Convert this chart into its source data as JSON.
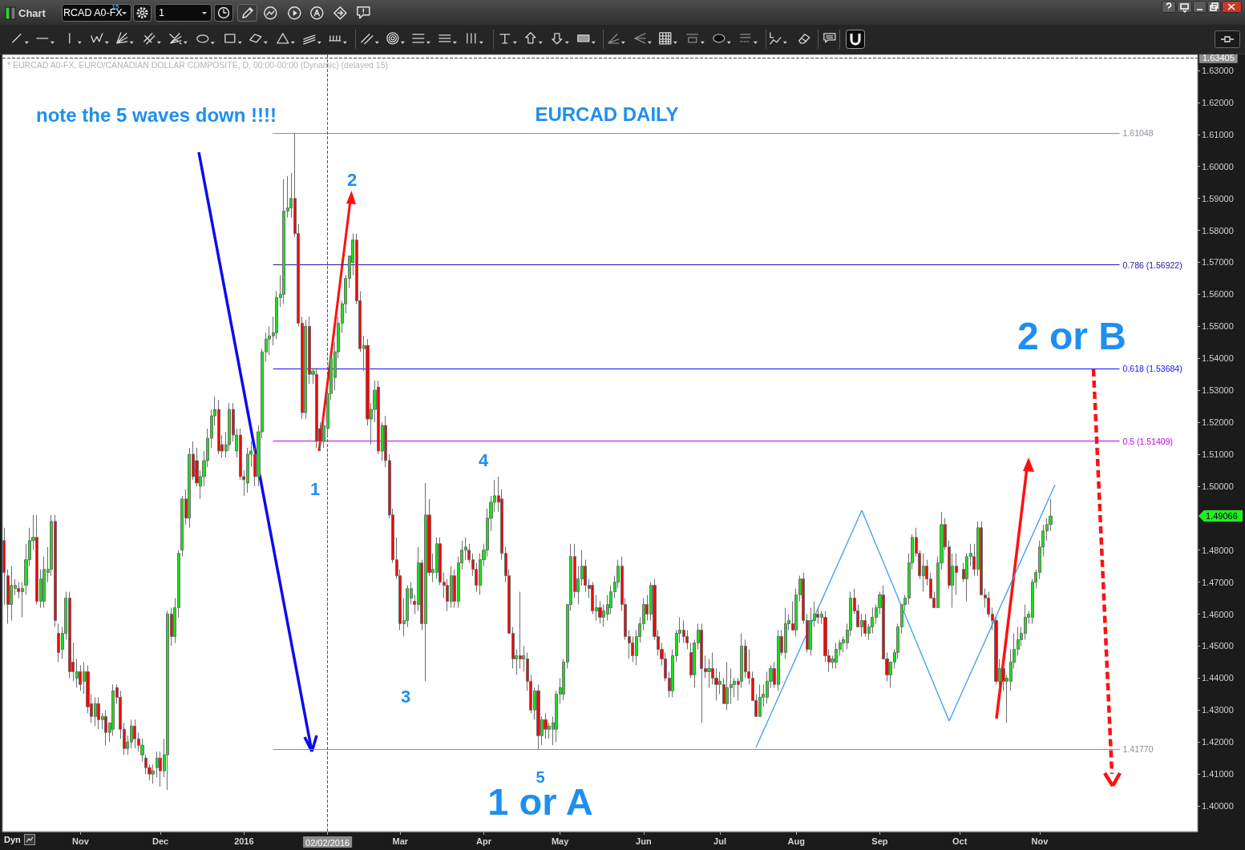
{
  "chart_data": {
    "type": "candlestick",
    "title": "EURCAD DAILY",
    "subtitle": "* EURCAD A0-FX, EURO/CANADIAN DOLLAR COMPOSITE, D, 00:00-00:00 (Dynamic) (delayed 15)",
    "categories": [
      null,
      null,
      null,
      null,
      null,
      null,
      null,
      null,
      null,
      null,
      null,
      null,
      null,
      null,
      null,
      null,
      null,
      null,
      null,
      null,
      null,
      "Nov",
      null,
      null,
      null,
      null,
      null,
      null,
      null,
      null,
      null,
      null,
      null,
      null,
      null,
      null,
      null,
      null,
      null,
      null,
      null,
      null,
      null,
      "Dec",
      null,
      null,
      null,
      null,
      null,
      null,
      null,
      null,
      null,
      null,
      null,
      null,
      null,
      null,
      null,
      null,
      null,
      null,
      null,
      null,
      null,
      null,
      "2016",
      null,
      null,
      null,
      null,
      null,
      null,
      null,
      null,
      null,
      null,
      null,
      null,
      null,
      null,
      null,
      null,
      null,
      null,
      null,
      null,
      null,
      null,
      "02/02/2016",
      null,
      null,
      null,
      null,
      null,
      null,
      null,
      null,
      null,
      null,
      null,
      null,
      null,
      null,
      null,
      null,
      null,
      null,
      null,
      "Mar",
      null,
      null,
      null,
      null,
      null,
      null,
      null,
      null,
      null,
      null,
      null,
      null,
      null,
      null,
      null,
      null,
      null,
      null,
      null,
      null,
      null,
      null,
      "Apr",
      null,
      null,
      null,
      null,
      null,
      null,
      null,
      null,
      null,
      null,
      null,
      null,
      null,
      null,
      null,
      null,
      null,
      null,
      null,
      null,
      "May",
      null,
      null,
      null,
      null,
      null,
      null,
      null,
      null,
      null,
      null,
      null,
      null,
      null,
      null,
      null,
      null,
      null,
      null,
      null,
      null,
      null,
      null,
      "Jun",
      null,
      null,
      null,
      null,
      null,
      null,
      null,
      null,
      null,
      null,
      null,
      null,
      null,
      null,
      null,
      null,
      null,
      null,
      null,
      null,
      "Jul",
      null,
      null,
      null,
      null,
      null,
      null,
      null,
      null,
      null,
      null,
      null,
      null,
      null,
      null,
      null,
      null,
      null,
      null,
      null,
      null,
      "Aug",
      null,
      null,
      null,
      null,
      null,
      null,
      null,
      null,
      null,
      null,
      null,
      null,
      null,
      null,
      null,
      null,
      null,
      null,
      null,
      null,
      null,
      null,
      "Sep",
      null,
      null,
      null,
      null,
      null,
      null,
      null,
      null,
      null,
      null,
      null,
      null,
      null,
      null,
      null,
      null,
      null,
      null,
      null,
      null,
      null,
      "Oct",
      null,
      null,
      null,
      null,
      null,
      null,
      null,
      null,
      null,
      null,
      null,
      null,
      null,
      null,
      null,
      null,
      null,
      null,
      null,
      null,
      null,
      "Nov",
      null,
      null,
      null,
      null,
      null,
      null,
      null,
      null,
      null,
      null,
      null,
      null,
      null,
      null,
      null,
      null,
      null,
      null,
      null,
      null,
      null,
      null,
      null,
      null,
      null,
      null,
      null,
      null,
      null,
      null,
      null,
      null,
      null,
      null,
      null,
      null,
      null,
      null,
      null,
      null,
      null,
      null,
      null
    ],
    "ohlc": [
      [
        1.483,
        1.487,
        1.463,
        1.473
      ],
      [
        1.472,
        1.474,
        1.457,
        1.463
      ],
      [
        1.463,
        1.475,
        1.458,
        1.469
      ],
      [
        1.468,
        1.471,
        1.466,
        1.469
      ],
      [
        1.468,
        1.47,
        1.465,
        1.467
      ],
      [
        1.467,
        1.47,
        1.459,
        1.468
      ],
      [
        1.469,
        1.482,
        1.466,
        1.477
      ],
      [
        1.477,
        1.487,
        1.475,
        1.483
      ],
      [
        1.483,
        1.491,
        1.48,
        1.484
      ],
      [
        1.484,
        1.491,
        1.463,
        1.464
      ],
      [
        1.464,
        1.474,
        1.462,
        1.471
      ],
      [
        1.464,
        1.478,
        1.462,
        1.474
      ],
      [
        1.473,
        1.481,
        1.47,
        1.474
      ],
      [
        1.474,
        1.491,
        1.472,
        1.489
      ],
      [
        1.489,
        1.491,
        1.456,
        1.458
      ],
      [
        1.454,
        1.457,
        1.445,
        1.448
      ],
      [
        1.449,
        1.456,
        1.446,
        1.454
      ],
      [
        1.454,
        1.467,
        1.452,
        1.465
      ],
      [
        1.465,
        1.467,
        1.44,
        1.442
      ],
      [
        1.445,
        1.451,
        1.439,
        1.442
      ],
      [
        1.44,
        1.446,
        1.437,
        1.442
      ],
      [
        1.442,
        1.444,
        1.436,
        1.438
      ],
      [
        1.439,
        1.445,
        1.435,
        1.442
      ],
      [
        1.442,
        1.444,
        1.429,
        1.431
      ],
      [
        1.432,
        1.435,
        1.426,
        1.428
      ],
      [
        1.428,
        1.434,
        1.425,
        1.432
      ],
      [
        1.432,
        1.434,
        1.424,
        1.427
      ],
      [
        1.427,
        1.429,
        1.424,
        1.428
      ],
      [
        1.428,
        1.43,
        1.419,
        1.423
      ],
      [
        1.423,
        1.426,
        1.42,
        1.426
      ],
      [
        1.424,
        1.438,
        1.422,
        1.436
      ],
      [
        1.437,
        1.438,
        1.432,
        1.434
      ],
      [
        1.434,
        1.436,
        1.421,
        1.424
      ],
      [
        1.424,
        1.426,
        1.416,
        1.418
      ],
      [
        1.418,
        1.422,
        1.416,
        1.42
      ],
      [
        1.42,
        1.427,
        1.418,
        1.425
      ],
      [
        1.425,
        1.427,
        1.418,
        1.421
      ],
      [
        1.421,
        1.423,
        1.417,
        1.419
      ],
      [
        1.416,
        1.421,
        1.414,
        1.419
      ],
      [
        1.415,
        1.416,
        1.41,
        1.412
      ],
      [
        1.412,
        1.413,
        1.408,
        1.41
      ],
      [
        1.41,
        1.413,
        1.407,
        1.411
      ],
      [
        1.412,
        1.417,
        1.409,
        1.415
      ],
      [
        1.415,
        1.417,
        1.406,
        1.411
      ],
      [
        1.411,
        1.421,
        1.409,
        1.416
      ],
      [
        1.416,
        1.461,
        1.405,
        1.46
      ],
      [
        1.46,
        1.462,
        1.45,
        1.453
      ],
      [
        1.453,
        1.465,
        1.451,
        1.462
      ],
      [
        1.462,
        1.48,
        1.459,
        1.479
      ],
      [
        1.48,
        1.497,
        1.478,
        1.496
      ],
      [
        1.496,
        1.499,
        1.488,
        1.49
      ],
      [
        1.49,
        1.512,
        1.487,
        1.51
      ],
      [
        1.51,
        1.514,
        1.502,
        1.503
      ],
      [
        1.508,
        1.512,
        1.5,
        1.501
      ],
      [
        1.5,
        1.505,
        1.496,
        1.503
      ],
      [
        1.503,
        1.511,
        1.5,
        1.508
      ],
      [
        1.508,
        1.518,
        1.506,
        1.515
      ],
      [
        1.515,
        1.524,
        1.512,
        1.522
      ],
      [
        1.522,
        1.528,
        1.519,
        1.524
      ],
      [
        1.524,
        1.527,
        1.51,
        1.511
      ],
      [
        1.513,
        1.516,
        1.509,
        1.511
      ],
      [
        1.511,
        1.517,
        1.509,
        1.513
      ],
      [
        1.513,
        1.526,
        1.511,
        1.524
      ],
      [
        1.524,
        1.526,
        1.514,
        1.516
      ],
      [
        1.511,
        1.518,
        1.509,
        1.516
      ],
      [
        1.516,
        1.518,
        1.502,
        1.503
      ],
      [
        1.503,
        1.505,
        1.497,
        1.502
      ],
      [
        1.501,
        1.512,
        1.498,
        1.51
      ],
      [
        1.51,
        1.514,
        1.506,
        1.511
      ],
      [
        1.51,
        1.512,
        1.5,
        1.503
      ],
      [
        1.503,
        1.519,
        1.5,
        1.517
      ],
      [
        1.517,
        1.543,
        1.515,
        1.542
      ],
      [
        1.542,
        1.548,
        1.539,
        1.546
      ],
      [
        1.546,
        1.55,
        1.541,
        1.547
      ],
      [
        1.547,
        1.553,
        1.544,
        1.548
      ],
      [
        1.548,
        1.561,
        1.546,
        1.559
      ],
      [
        1.559,
        1.566,
        1.556,
        1.56
      ],
      [
        1.56,
        1.596,
        1.557,
        1.586
      ],
      [
        1.586,
        1.597,
        1.584,
        1.587
      ],
      [
        1.587,
        1.598,
        1.584,
        1.59
      ],
      [
        1.59,
        1.6105,
        1.578,
        1.579
      ],
      [
        1.579,
        1.582,
        1.55,
        1.551
      ],
      [
        1.551,
        1.553,
        1.521,
        1.523
      ],
      [
        1.523,
        1.552,
        1.521,
        1.55
      ],
      [
        1.55,
        1.553,
        1.532,
        1.535
      ],
      [
        1.535,
        1.537,
        1.532,
        1.536
      ],
      [
        1.535,
        1.537,
        1.512,
        1.514
      ],
      [
        1.518,
        1.52,
        1.511,
        1.514
      ],
      [
        1.514,
        1.522,
        1.512,
        1.519
      ],
      [
        1.518,
        1.531,
        1.516,
        1.529
      ],
      [
        1.529,
        1.541,
        1.527,
        1.54
      ],
      [
        1.534,
        1.545,
        1.53,
        1.542
      ],
      [
        1.542,
        1.553,
        1.54,
        1.551
      ],
      [
        1.551,
        1.558,
        1.548,
        1.557
      ],
      [
        1.557,
        1.566,
        1.554,
        1.565
      ],
      [
        1.565,
        1.572,
        1.562,
        1.572
      ],
      [
        1.57,
        1.579,
        1.566,
        1.577
      ],
      [
        1.577,
        1.579,
        1.557,
        1.558
      ],
      [
        1.558,
        1.561,
        1.542,
        1.543
      ],
      [
        1.543,
        1.547,
        1.536,
        1.544
      ],
      [
        1.544,
        1.546,
        1.519,
        1.521
      ],
      [
        1.521,
        1.526,
        1.513,
        1.524
      ],
      [
        1.524,
        1.533,
        1.52,
        1.53
      ],
      [
        1.531,
        1.533,
        1.51,
        1.511
      ],
      [
        1.511,
        1.52,
        1.508,
        1.519
      ],
      [
        1.519,
        1.522,
        1.506,
        1.508
      ],
      [
        1.508,
        1.51,
        1.49,
        1.491
      ],
      [
        1.491,
        1.493,
        1.476,
        1.477
      ],
      [
        1.477,
        1.484,
        1.471,
        1.472
      ],
      [
        1.472,
        1.474,
        1.455,
        1.457
      ],
      [
        1.457,
        1.465,
        1.453,
        1.458
      ],
      [
        1.458,
        1.469,
        1.456,
        1.468
      ],
      [
        1.465,
        1.47,
        1.463,
        1.468
      ],
      [
        1.464,
        1.466,
        1.46,
        1.463
      ],
      [
        1.463,
        1.481,
        1.461,
        1.476
      ],
      [
        1.476,
        1.477,
        1.455,
        1.457
      ],
      [
        1.457,
        1.501,
        1.439,
        1.491
      ],
      [
        1.491,
        1.496,
        1.472,
        1.473
      ],
      [
        1.473,
        1.479,
        1.47,
        1.474
      ],
      [
        1.473,
        1.484,
        1.471,
        1.482
      ],
      [
        1.482,
        1.484,
        1.469,
        1.47
      ],
      [
        1.47,
        1.473,
        1.465,
        1.469
      ],
      [
        1.469,
        1.471,
        1.461,
        1.464
      ],
      [
        1.464,
        1.475,
        1.462,
        1.472
      ],
      [
        1.472,
        1.474,
        1.462,
        1.464
      ],
      [
        1.464,
        1.478,
        1.462,
        1.476
      ],
      [
        1.476,
        1.483,
        1.474,
        1.48
      ],
      [
        1.48,
        1.484,
        1.477,
        1.481
      ],
      [
        1.48,
        1.482,
        1.476,
        1.477
      ],
      [
        1.477,
        1.479,
        1.472,
        1.474
      ],
      [
        1.474,
        1.476,
        1.467,
        1.469
      ],
      [
        1.469,
        1.479,
        1.466,
        1.477
      ],
      [
        1.477,
        1.482,
        1.475,
        1.48
      ],
      [
        1.48,
        1.493,
        1.478,
        1.49
      ],
      [
        1.49,
        1.497,
        1.486,
        1.495
      ],
      [
        1.495,
        1.502,
        1.492,
        1.497
      ],
      [
        1.497,
        1.503,
        1.492,
        1.495
      ],
      [
        1.496,
        1.499,
        1.477,
        1.479
      ],
      [
        1.479,
        1.481,
        1.47,
        1.472
      ],
      [
        1.472,
        1.474,
        1.454,
        1.454
      ],
      [
        1.454,
        1.456,
        1.443,
        1.446
      ],
      [
        1.446,
        1.449,
        1.441,
        1.447
      ],
      [
        1.447,
        1.467,
        1.443,
        1.446
      ],
      [
        1.446,
        1.45,
        1.442,
        1.447
      ],
      [
        1.446,
        1.448,
        1.436,
        1.439
      ],
      [
        1.439,
        1.441,
        1.429,
        1.43
      ],
      [
        1.43,
        1.437,
        1.427,
        1.436
      ],
      [
        1.436,
        1.438,
        1.4177,
        1.422
      ],
      [
        1.422,
        1.428,
        1.419,
        1.427
      ],
      [
        1.427,
        1.429,
        1.421,
        1.424
      ],
      [
        1.424,
        1.426,
        1.421,
        1.425
      ],
      [
        1.424,
        1.428,
        1.419,
        1.426
      ],
      [
        1.424,
        1.436,
        1.42,
        1.435
      ],
      [
        1.435,
        1.44,
        1.432,
        1.437
      ],
      [
        1.435,
        1.446,
        1.433,
        1.445
      ],
      [
        1.445,
        1.463,
        1.443,
        1.463
      ],
      [
        1.463,
        1.482,
        1.461,
        1.478
      ],
      [
        1.478,
        1.482,
        1.465,
        1.467
      ],
      [
        1.467,
        1.475,
        1.463,
        1.471
      ],
      [
        1.471,
        1.48,
        1.469,
        1.475
      ],
      [
        1.475,
        1.477,
        1.467,
        1.469
      ],
      [
        1.469,
        1.471,
        1.465,
        1.468
      ],
      [
        1.469,
        1.47,
        1.46,
        1.461
      ],
      [
        1.461,
        1.466,
        1.458,
        1.462
      ],
      [
        1.462,
        1.464,
        1.457,
        1.459
      ],
      [
        1.459,
        1.463,
        1.456,
        1.461
      ],
      [
        1.46,
        1.466,
        1.458,
        1.463
      ],
      [
        1.462,
        1.469,
        1.46,
        1.467
      ],
      [
        1.467,
        1.472,
        1.465,
        1.47
      ],
      [
        1.47,
        1.477,
        1.468,
        1.475
      ],
      [
        1.475,
        1.478,
        1.461,
        1.463
      ],
      [
        1.463,
        1.465,
        1.452,
        1.453
      ],
      [
        1.453,
        1.455,
        1.446,
        1.451
      ],
      [
        1.451,
        1.453,
        1.445,
        1.447
      ],
      [
        1.447,
        1.455,
        1.444,
        1.453
      ],
      [
        1.453,
        1.459,
        1.451,
        1.457
      ],
      [
        1.457,
        1.465,
        1.455,
        1.463
      ],
      [
        1.463,
        1.466,
        1.458,
        1.46
      ],
      [
        1.46,
        1.47,
        1.458,
        1.469
      ],
      [
        1.469,
        1.471,
        1.452,
        1.453
      ],
      [
        1.453,
        1.455,
        1.447,
        1.449
      ],
      [
        1.449,
        1.451,
        1.444,
        1.446
      ],
      [
        1.446,
        1.448,
        1.439,
        1.44
      ],
      [
        1.44,
        1.442,
        1.434,
        1.436
      ],
      [
        1.436,
        1.449,
        1.434,
        1.447
      ],
      [
        1.447,
        1.455,
        1.445,
        1.454
      ],
      [
        1.454,
        1.459,
        1.451,
        1.455
      ],
      [
        1.455,
        1.458,
        1.451,
        1.453
      ],
      [
        1.453,
        1.455,
        1.449,
        1.451
      ],
      [
        1.448,
        1.451,
        1.44,
        1.441
      ],
      [
        1.441,
        1.452,
        1.437,
        1.451
      ],
      [
        1.451,
        1.457,
        1.449,
        1.455
      ],
      [
        1.455,
        1.457,
        1.426,
        1.443
      ],
      [
        1.443,
        1.447,
        1.44,
        1.442
      ],
      [
        1.442,
        1.446,
        1.437,
        1.443
      ],
      [
        1.443,
        1.448,
        1.438,
        1.44
      ],
      [
        1.44,
        1.443,
        1.433,
        1.438
      ],
      [
        1.438,
        1.442,
        1.435,
        1.439
      ],
      [
        1.438,
        1.44,
        1.432,
        1.432
      ],
      [
        1.432,
        1.445,
        1.43,
        1.437
      ],
      [
        1.437,
        1.443,
        1.432,
        1.438
      ],
      [
        1.438,
        1.44,
        1.434,
        1.439
      ],
      [
        1.439,
        1.44,
        1.433,
        1.438
      ],
      [
        1.439,
        1.454,
        1.437,
        1.45
      ],
      [
        1.45,
        1.452,
        1.44,
        1.442
      ],
      [
        1.442,
        1.449,
        1.438,
        1.44
      ],
      [
        1.44,
        1.442,
        1.433,
        1.433
      ],
      [
        1.433,
        1.435,
        1.428,
        1.428
      ],
      [
        1.428,
        1.438,
        1.428,
        1.434
      ],
      [
        1.434,
        1.438,
        1.431,
        1.435
      ],
      [
        1.434,
        1.442,
        1.432,
        1.439
      ],
      [
        1.439,
        1.444,
        1.437,
        1.443
      ],
      [
        1.443,
        1.445,
        1.437,
        1.438
      ],
      [
        1.438,
        1.455,
        1.436,
        1.453
      ],
      [
        1.453,
        1.455,
        1.447,
        1.448
      ],
      [
        1.448,
        1.462,
        1.446,
        1.457
      ],
      [
        1.457,
        1.46,
        1.455,
        1.458
      ],
      [
        1.457,
        1.464,
        1.455,
        1.455
      ],
      [
        1.455,
        1.468,
        1.453,
        1.466
      ],
      [
        1.466,
        1.472,
        1.464,
        1.471
      ],
      [
        1.471,
        1.473,
        1.457,
        1.458
      ],
      [
        1.458,
        1.46,
        1.448,
        1.449
      ],
      [
        1.449,
        1.462,
        1.447,
        1.458
      ],
      [
        1.458,
        1.464,
        1.456,
        1.46
      ],
      [
        1.46,
        1.462,
        1.457,
        1.459
      ],
      [
        1.459,
        1.461,
        1.457,
        1.46
      ],
      [
        1.459,
        1.461,
        1.445,
        1.447
      ],
      [
        1.447,
        1.449,
        1.442,
        1.445
      ],
      [
        1.445,
        1.447,
        1.443,
        1.446
      ],
      [
        1.445,
        1.451,
        1.443,
        1.449
      ],
      [
        1.449,
        1.452,
        1.447,
        1.451
      ],
      [
        1.451,
        1.453,
        1.448,
        1.452
      ],
      [
        1.451,
        1.457,
        1.449,
        1.455
      ],
      [
        1.455,
        1.467,
        1.453,
        1.465
      ],
      [
        1.465,
        1.468,
        1.46,
        1.461
      ],
      [
        1.461,
        1.463,
        1.456,
        1.456
      ],
      [
        1.456,
        1.46,
        1.453,
        1.458
      ],
      [
        1.458,
        1.46,
        1.453,
        1.454
      ],
      [
        1.454,
        1.457,
        1.452,
        1.456
      ],
      [
        1.456,
        1.462,
        1.454,
        1.459
      ],
      [
        1.459,
        1.463,
        1.457,
        1.462
      ],
      [
        1.462,
        1.467,
        1.46,
        1.466
      ],
      [
        1.466,
        1.469,
        1.446,
        1.446
      ],
      [
        1.446,
        1.448,
        1.439,
        1.441
      ],
      [
        1.441,
        1.445,
        1.437,
        1.445
      ],
      [
        1.445,
        1.449,
        1.443,
        1.448
      ],
      [
        1.448,
        1.457,
        1.446,
        1.456
      ],
      [
        1.456,
        1.463,
        1.454,
        1.463
      ],
      [
        1.463,
        1.466,
        1.461,
        1.465
      ],
      [
        1.465,
        1.479,
        1.463,
        1.476
      ],
      [
        1.476,
        1.485,
        1.474,
        1.484
      ],
      [
        1.484,
        1.487,
        1.478,
        1.479
      ],
      [
        1.479,
        1.48,
        1.471,
        1.472
      ],
      [
        1.472,
        1.479,
        1.467,
        1.475
      ],
      [
        1.475,
        1.477,
        1.469,
        1.471
      ],
      [
        1.471,
        1.473,
        1.465,
        1.465
      ],
      [
        1.465,
        1.467,
        1.462,
        1.462
      ],
      [
        1.462,
        1.478,
        1.462,
        1.476
      ],
      [
        1.476,
        1.492,
        1.474,
        1.488
      ],
      [
        1.488,
        1.49,
        1.48,
        1.481
      ],
      [
        1.481,
        1.483,
        1.468,
        1.469
      ],
      [
        1.469,
        1.479,
        1.462,
        1.475
      ],
      [
        1.475,
        1.479,
        1.466,
        1.473
      ],
      null,
      [
        1.474,
        1.476,
        1.47,
        1.471
      ],
      [
        1.471,
        1.479,
        1.464,
        1.478
      ],
      [
        1.478,
        1.482,
        1.475,
        1.479
      ],
      [
        1.478,
        1.482,
        1.472,
        1.474
      ],
      [
        1.474,
        1.489,
        1.472,
        1.487
      ],
      [
        1.487,
        1.489,
        1.466,
        1.466
      ],
      [
        1.466,
        1.468,
        1.462,
        1.465
      ],
      [
        1.465,
        1.467,
        1.459,
        1.46
      ],
      [
        1.46,
        1.462,
        1.455,
        1.458
      ],
      [
        1.458,
        1.459,
        1.438,
        1.439
      ],
      [
        1.439,
        1.446,
        1.435,
        1.443
      ],
      [
        1.443,
        1.446,
        1.436,
        1.439
      ],
      [
        1.439,
        1.441,
        1.426,
        1.44
      ],
      [
        1.439,
        1.449,
        1.436,
        1.445
      ],
      [
        1.445,
        1.454,
        1.443,
        1.449
      ],
      [
        1.449,
        1.456,
        1.447,
        1.452
      ],
      [
        1.452,
        1.456,
        1.45,
        1.454
      ],
      [
        1.454,
        1.463,
        1.452,
        1.459
      ],
      [
        1.459,
        1.461,
        1.457,
        1.46
      ],
      [
        1.459,
        1.471,
        1.457,
        1.47
      ],
      [
        1.47,
        1.474,
        1.468,
        1.473
      ],
      [
        1.473,
        1.483,
        1.471,
        1.481
      ],
      [
        1.481,
        1.488,
        1.478,
        1.486
      ],
      [
        1.486,
        1.49,
        1.483,
        1.488
      ],
      [
        1.488,
        1.496,
        1.486,
        1.49066
      ],
      null,
      null,
      null,
      null,
      null,
      null,
      null,
      null,
      null,
      null,
      null,
      null,
      null,
      null,
      null,
      null,
      null,
      null,
      null,
      null,
      null,
      null,
      null,
      null,
      null,
      null,
      null,
      null,
      null,
      null,
      null,
      null,
      null,
      null,
      null,
      null,
      null,
      null,
      null,
      null
    ],
    "colors": [
      "#ff0000",
      "#ff0000",
      "#14e614",
      "#14e614",
      "#ff0000",
      "#14e614",
      "#14e614",
      "#14e614",
      "#14e614",
      "#ff0000",
      "#14e614",
      "#14e614",
      "#14e614",
      "#14e614",
      "#ff0000",
      "#ff0000",
      "#14e614",
      "#14e614",
      "#ff0000",
      "#ff0000",
      "#14e614",
      "#ff0000",
      "#14e614",
      "#ff0000",
      "#ff0000",
      "#14e614",
      "#ff0000",
      "#14e614",
      "#ff0000",
      "#14e614",
      "#14e614",
      "#ff0000",
      "#ff0000",
      "#ff0000",
      "#14e614",
      "#14e614",
      "#ff0000",
      "#ff0000",
      "#14e614",
      "#ff0000",
      "#ff0000",
      "#14e614",
      "#14e614",
      "#ff0000",
      "#14e614",
      "#14e614",
      "#ff0000",
      "#14e614",
      "#14e614",
      "#14e614",
      "#ff0000",
      "#14e614",
      "#ff0000",
      "#ff0000",
      "#14e614",
      "#14e614",
      "#14e614",
      "#14e614",
      "#14e614",
      "#ff0000",
      "#ff0000",
      "#14e614",
      "#14e614",
      "#ff0000",
      "#14e614",
      "#ff0000",
      "#ff0000",
      "#14e614",
      "#14e614",
      "#ff0000",
      "#14e614",
      "#14e614",
      "#14e614",
      "#14e614",
      "#14e614",
      "#14e614",
      "#14e614",
      "#14e614",
      "#14e614",
      "#14e614",
      "#ff0000",
      "#ff0000",
      "#ff0000",
      "#14e614",
      "#ff0000",
      "#14e614",
      "#ff0000",
      "#ff0000",
      "#14e614",
      "#14e614",
      "#14e614",
      "#14e614",
      "#14e614",
      "#14e614",
      "#14e614",
      "#14e614",
      "#14e614",
      "#ff0000",
      "#ff0000",
      "#14e614",
      "#ff0000",
      "#14e614",
      "#14e614",
      "#ff0000",
      "#14e614",
      "#ff0000",
      "#ff0000",
      "#ff0000",
      "#ff0000",
      "#ff0000",
      "#14e614",
      "#14e614",
      "#14e614",
      "#ff0000",
      "#14e614",
      "#ff0000",
      "#14e614",
      "#ff0000",
      "#14e614",
      "#14e614",
      "#ff0000",
      "#ff0000",
      "#ff0000",
      "#14e614",
      "#ff0000",
      "#14e614",
      "#14e614",
      "#14e614",
      "#ff0000",
      "#ff0000",
      "#ff0000",
      "#14e614",
      "#14e614",
      "#14e614",
      "#14e614",
      "#14e614",
      "#ff0000",
      "#ff0000",
      "#ff0000",
      "#ff0000",
      "#ff0000",
      "#14e614",
      "#ff0000",
      "#14e614",
      "#ff0000",
      "#ff0000",
      "#14e614",
      "#ff0000",
      "#14e614",
      "#ff0000",
      "#14e614",
      "#14e614",
      "#14e614",
      "#14e614",
      "#14e614",
      "#14e614",
      "#14e614",
      "#ff0000",
      "#14e614",
      "#14e614",
      "#ff0000",
      "#ff0000",
      "#ff0000",
      "#14e614",
      "#ff0000",
      "#14e614",
      "#14e614",
      "#14e614",
      "#14e614",
      "#14e614",
      "#ff0000",
      "#ff0000",
      "#ff0000",
      "#ff0000",
      "#14e614",
      "#14e614",
      "#14e614",
      "#ff0000",
      "#14e614",
      "#ff0000",
      "#ff0000",
      "#ff0000",
      "#ff0000",
      "#ff0000",
      "#14e614",
      "#14e614",
      "#14e614",
      "#ff0000",
      "#ff0000",
      "#ff0000",
      "#14e614",
      "#14e614",
      "#ff0000",
      "#ff0000",
      "#14e614",
      "#ff0000",
      "#ff0000",
      "#14e614",
      "#ff0000",
      "#14e614",
      "#14e614",
      "#14e614",
      "#ff0000",
      "#14e614",
      "#ff0000",
      "#ff0000",
      "#ff0000",
      "#ff0000",
      "#14e614",
      "#14e614",
      "#14e614",
      "#14e614",
      "#ff0000",
      "#14e614",
      "#ff0000",
      "#14e614",
      "#14e614",
      "#ff0000",
      "#14e614",
      "#14e614",
      "#ff0000",
      "#ff0000",
      "#14e614",
      "#14e614",
      "#ff0000",
      "#14e614",
      "#ff0000",
      "#ff0000",
      "#14e614",
      "#14e614",
      "#14e614",
      "#14e614",
      "#14e614",
      "#14e614",
      "#ff0000",
      "#ff0000",
      "#14e614",
      "#ff0000",
      "#14e614",
      "#14e614",
      "#14e614",
      "#14e614",
      "#ff0000",
      "#ff0000",
      "#14e614",
      "#14e614",
      "#14e614",
      "#14e614",
      "#14e614",
      "#14e614",
      "#14e614",
      "#ff0000",
      "#ff0000",
      "#14e614",
      "#ff0000",
      "#ff0000",
      "#ff0000",
      "#14e614",
      "#14e614",
      "#ff0000",
      "#ff0000",
      "#14e614",
      "#ff0000",
      null,
      "#ff0000",
      "#14e614",
      "#14e614",
      "#ff0000",
      "#14e614",
      "#ff0000",
      "#ff0000",
      "#ff0000",
      "#ff0000",
      "#ff0000",
      "#14e614",
      "#ff0000",
      "#14e614",
      "#14e614",
      "#14e614",
      "#14e614",
      "#14e614",
      "#14e614",
      "#14e614",
      "#14e614",
      "#14e614",
      "#14e614",
      "#14e614",
      "#14e614",
      "#14e614",
      null,
      null,
      null,
      null,
      null,
      null,
      null,
      null,
      null,
      null,
      null,
      null,
      null,
      null,
      null,
      null,
      null,
      null,
      null,
      null,
      null,
      null,
      null,
      null,
      null,
      null,
      null,
      null,
      null,
      null,
      null,
      null,
      null,
      null,
      null,
      null,
      null,
      null,
      null,
      null
    ],
    "ylim": [
      1.392,
      1.635
    ],
    "yticks": [
      {
        "value": 1.4,
        "label": "1.40000"
      },
      {
        "value": 1.41,
        "label": "1.41000"
      },
      {
        "value": 1.42,
        "label": "1.42000"
      },
      {
        "value": 1.43,
        "label": "1.43000"
      },
      {
        "value": 1.44,
        "label": "1.44000"
      },
      {
        "value": 1.45,
        "label": "1.45000"
      },
      {
        "value": 1.46,
        "label": "1.46000"
      },
      {
        "value": 1.47,
        "label": "1.47000"
      },
      {
        "value": 1.48,
        "label": "1.48000"
      },
      {
        "value": 1.5,
        "label": "1.50000"
      },
      {
        "value": 1.51,
        "label": "1.51000"
      },
      {
        "value": 1.52,
        "label": "1.52000"
      },
      {
        "value": 1.53,
        "label": "1.53000"
      },
      {
        "value": 1.54,
        "label": "1.54000"
      },
      {
        "value": 1.55,
        "label": "1.55000"
      },
      {
        "value": 1.56,
        "label": "1.56000"
      },
      {
        "value": 1.57,
        "label": "1.57000"
      },
      {
        "value": 1.58,
        "label": "1.58000"
      },
      {
        "value": 1.59,
        "label": "1.59000"
      },
      {
        "value": 1.6,
        "label": "1.60000"
      },
      {
        "value": 1.61,
        "label": "1.61000"
      },
      {
        "value": 1.62,
        "label": "1.62000"
      },
      {
        "value": 1.63,
        "label": "1.63000"
      }
    ],
    "ref_lines": [
      {
        "axis": "y",
        "value": 1.61048,
        "label": "1.61048",
        "color": "#8e8aa6"
      },
      {
        "axis": "y",
        "value": 1.56922,
        "label": "0.786 (1.56922)",
        "color": "#1a1a9a"
      },
      {
        "axis": "y",
        "value": 1.53684,
        "label": "0.618 (1.53684)",
        "color": "#1010ff"
      },
      {
        "axis": "y",
        "value": 1.51409,
        "label": "0.5 (1.51409)",
        "color": "#c000f0"
      },
      {
        "axis": "y",
        "value": 1.4177,
        "label": "1.41770",
        "color": "#8c8c8c"
      },
      {
        "axis": "y",
        "value": 1.63405,
        "label": "1.63405",
        "color": "#444444",
        "line_style": "dashed"
      },
      {
        "axis": "x",
        "value": "02/02/2016",
        "color": "#555555",
        "line_style": "dashed"
      }
    ],
    "annotations": [
      "note the 5 waves down !!!!",
      {
        "text": "2",
        "y": 1.579
      },
      "1",
      "3",
      "4",
      "5",
      "1 or A",
      "2 or B",
      "Chart",
      "RCAD A0-FX",
      "15",
      "1",
      "Dyn",
      "1.49066"
    ]
  }
}
